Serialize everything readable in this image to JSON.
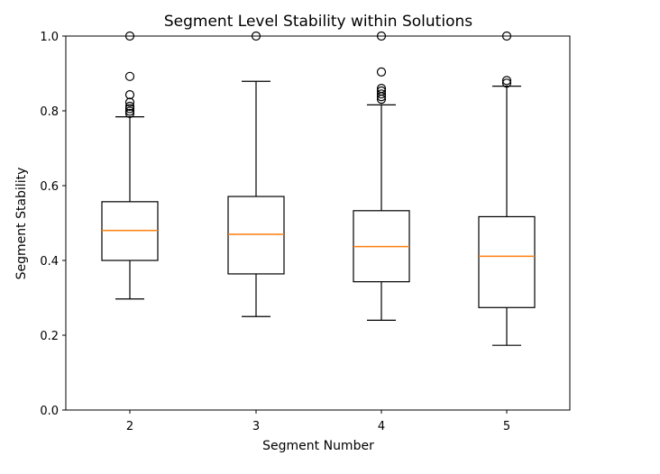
{
  "chart_data": {
    "type": "boxplot",
    "title": "Segment Level Stability within Solutions",
    "xlabel": "Segment Number",
    "ylabel": "Segment Stability",
    "categories": [
      "2",
      "3",
      "4",
      "5"
    ],
    "ylim": [
      0.0,
      1.0
    ],
    "yticks": [
      "0.0",
      "0.2",
      "0.4",
      "0.6",
      "0.8",
      "1.0"
    ],
    "grid": false,
    "colors": {
      "box": "#000000",
      "median": "#ff7f0e",
      "outlier": "#000000"
    },
    "boxes": [
      {
        "category": "2",
        "whisker_low": 0.297,
        "q1": 0.4,
        "median": 0.48,
        "q3": 0.557,
        "whisker_high": 0.784,
        "outliers": [
          0.793,
          0.799,
          0.806,
          0.812,
          0.823,
          0.843,
          0.892,
          1.0
        ]
      },
      {
        "category": "3",
        "whisker_low": 0.25,
        "q1": 0.364,
        "median": 0.47,
        "q3": 0.571,
        "whisker_high": 0.879,
        "outliers": [
          1.0
        ]
      },
      {
        "category": "4",
        "whisker_low": 0.24,
        "q1": 0.343,
        "median": 0.437,
        "q3": 0.533,
        "whisker_high": 0.816,
        "outliers": [
          0.831,
          0.838,
          0.845,
          0.853,
          0.86,
          0.904,
          1.0
        ]
      },
      {
        "category": "5",
        "whisker_low": 0.173,
        "q1": 0.274,
        "median": 0.411,
        "q3": 0.517,
        "whisker_high": 0.866,
        "outliers": [
          0.874,
          0.881,
          1.0
        ]
      }
    ]
  }
}
